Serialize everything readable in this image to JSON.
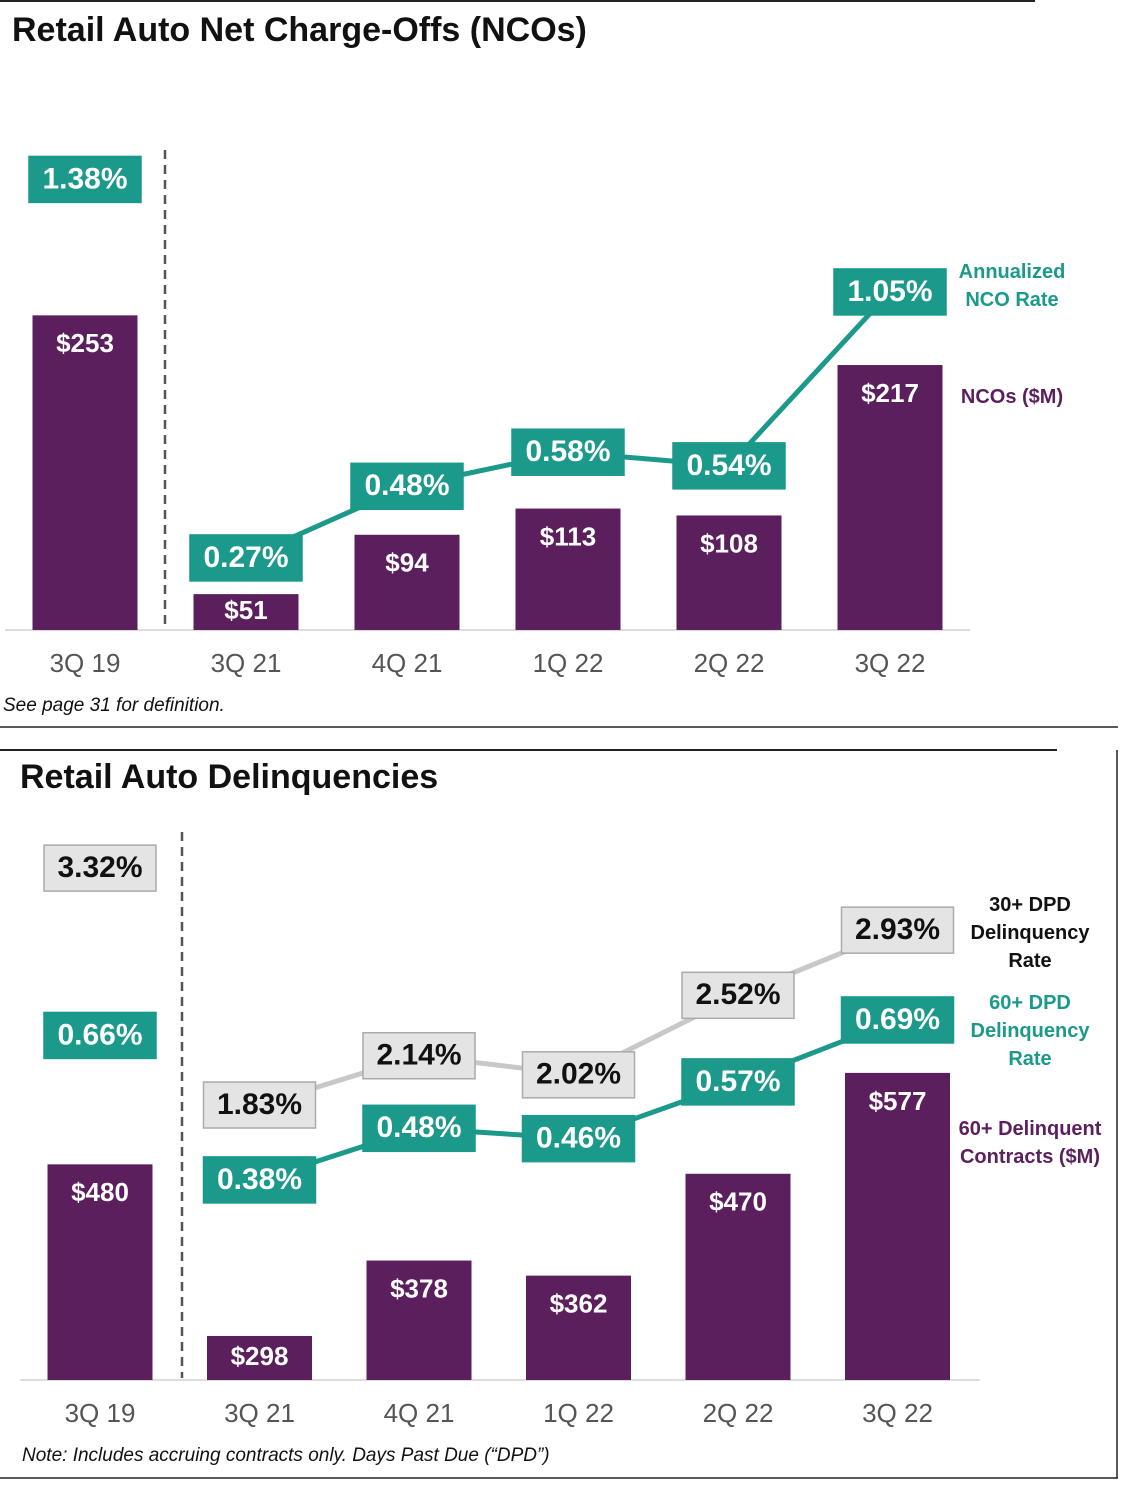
{
  "chart_data": [
    {
      "type": "bar",
      "title": "Retail Auto Net Charge-Offs (NCOs)",
      "categories": [
        "3Q 19",
        "3Q 21",
        "4Q 21",
        "1Q 22",
        "2Q 22",
        "3Q 22"
      ],
      "series": [
        {
          "name": "NCOs ($M)",
          "color": "#5b1f5e",
          "values": [
            253,
            51,
            94,
            113,
            108,
            217
          ],
          "value_labels": [
            "$253",
            "$51",
            "$94",
            "$113",
            "$108",
            "$217"
          ]
        },
        {
          "name": "Annualized NCO Rate",
          "color": "#1b998b",
          "type": "line",
          "values": [
            1.38,
            0.27,
            0.48,
            0.58,
            0.54,
            1.05
          ],
          "value_labels": [
            "1.38%",
            "0.27%",
            "0.48%",
            "0.58%",
            "0.54%",
            "1.05%"
          ]
        }
      ],
      "footnote": "See page 31 for definition."
    },
    {
      "type": "bar",
      "title": "Retail Auto Delinquencies",
      "categories": [
        "3Q 19",
        "3Q 21",
        "4Q 21",
        "1Q 22",
        "2Q 22",
        "3Q 22"
      ],
      "series": [
        {
          "name": "60+ Delinquent Contracts ($M)",
          "color": "#5b1f5e",
          "values": [
            480,
            298,
            378,
            362,
            470,
            577
          ],
          "value_labels": [
            "$480",
            "$298",
            "$378",
            "$362",
            "$470",
            "$577"
          ]
        },
        {
          "name": "30+ DPD Delinquency Rate",
          "color": "#c8c8c8",
          "type": "line",
          "values": [
            3.32,
            1.83,
            2.14,
            2.02,
            2.52,
            2.93
          ],
          "value_labels": [
            "3.32%",
            "1.83%",
            "2.14%",
            "2.02%",
            "2.52%",
            "2.93%"
          ]
        },
        {
          "name": "60+ DPD Delinquency Rate",
          "color": "#1b998b",
          "type": "line",
          "values": [
            0.66,
            0.38,
            0.48,
            0.46,
            0.57,
            0.69
          ],
          "value_labels": [
            "0.66%",
            "0.38%",
            "0.48%",
            "0.46%",
            "0.57%",
            "0.69%"
          ]
        }
      ],
      "footnote": "Note: Includes accruing contracts only. Days Past Due (“DPD”)"
    }
  ]
}
